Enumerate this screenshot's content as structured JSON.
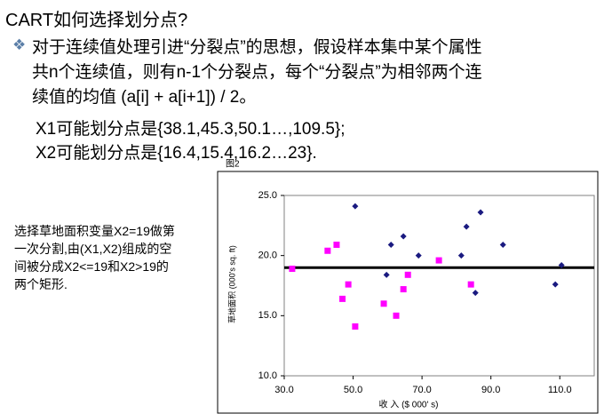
{
  "title": "CART如何选择划分点?",
  "bullet": [
    "对于连续值处理引进“分裂点”的思想，假设样本集中某个属性",
    "共n个连续值，则有n-1个分裂点，每个“分裂点”为相邻两个连",
    "续值的均值 (a[i] + a[i+1]) / 2。"
  ],
  "examples": [
    "X1可能划分点是{38.1,45.3,50.1…,109.5};",
    "X2可能划分点是{16.4,15.4,16.2…23}."
  ],
  "side_text": [
    "选择草地面积变量X2=19做第",
    "一次分割,由(X1,X2)组成的空",
    "间被分成X2<=19和X2>19的",
    "两个矩形."
  ],
  "chart_data": {
    "type": "scatter",
    "title": "图2",
    "x_label": "收 入 ($ 000' s)",
    "y_label": "草地面积 (000's sq. ft)",
    "xlim": [
      30,
      120
    ],
    "ylim": [
      10,
      25
    ],
    "xticks": [
      {
        "value": 30,
        "label": "30.0"
      },
      {
        "value": 50,
        "label": "50.0"
      },
      {
        "value": 70,
        "label": "70.0"
      },
      {
        "value": 90,
        "label": "90.0"
      },
      {
        "value": 110,
        "label": "110.0"
      }
    ],
    "yticks": [
      {
        "value": 10,
        "label": "10.0"
      },
      {
        "value": 15,
        "label": "15.0"
      },
      {
        "value": 20,
        "label": "20.0"
      },
      {
        "value": 25,
        "label": "25.0"
      }
    ],
    "threshold": 19,
    "series": [
      {
        "color": "#1a1a80",
        "marker": "diamond",
        "x": [
          50.6,
          61,
          64.6,
          69,
          59.7,
          81.4,
          82.9,
          87,
          93.5,
          85.5,
          108.7,
          110.5
        ],
        "values": [
          24.1,
          20.9,
          21.6,
          20.0,
          18.4,
          20.0,
          22.4,
          23.6,
          20.9,
          16.9,
          17.6,
          19.2
        ]
      },
      {
        "color": "#ff00ff",
        "marker": "square",
        "x": [
          32.3,
          42.6,
          45.2,
          48.6,
          46.9,
          50.6,
          58.9,
          62.5,
          64.6,
          65.9,
          74.9,
          84.2
        ],
        "values": [
          18.9,
          20.4,
          20.9,
          17.6,
          16.4,
          14.1,
          16.0,
          15.0,
          17.2,
          18.4,
          19.6,
          17.6
        ]
      }
    ]
  }
}
